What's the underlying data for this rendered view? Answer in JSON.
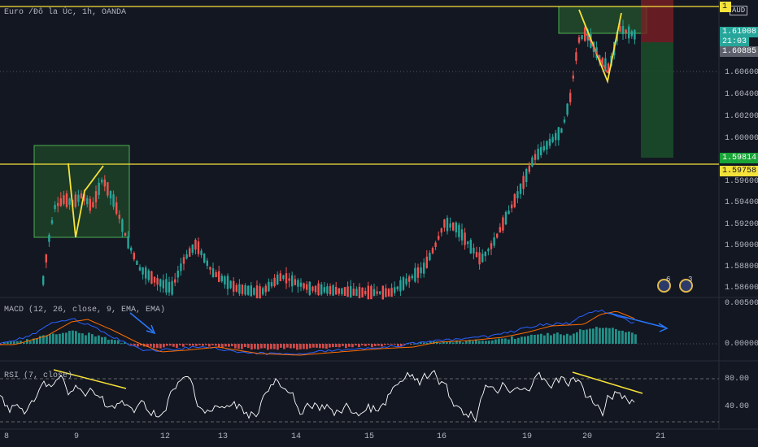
{
  "header": {
    "symbol_title": "Euro /Đô la Úc, 1h, OANDA",
    "currency": "AUD"
  },
  "price_axis": {
    "labels": [
      "1.60600",
      "1.60400",
      "1.60200",
      "1.60000",
      "1.59600",
      "1.59400",
      "1.59200",
      "1.59000",
      "1.58800",
      "1.58600"
    ],
    "tag_top": "1",
    "tag_current_price": "1.61008",
    "tag_countdown": "21:03",
    "tag_grey": "1.60885",
    "tag_green": "1.59814",
    "tag_yellow": "1.59758"
  },
  "macd_pane": {
    "title": "MACD (12, 26, close, 9, EMA, EMA)",
    "axis_labels": [
      "0.00500",
      "0.00000"
    ]
  },
  "rsi_pane": {
    "title": "RSI (7, close)",
    "axis_labels": [
      "80.00",
      "40.00"
    ]
  },
  "time_axis": {
    "labels": [
      "8",
      "9",
      "12",
      "13",
      "14",
      "15",
      "16",
      "19",
      "20",
      "21"
    ]
  },
  "badges": [
    {
      "name": "events-badge",
      "count": "6"
    },
    {
      "name": "ideas-badge",
      "count": "3"
    }
  ],
  "colors": {
    "background": "#131722",
    "up_candle": "#26a69a",
    "down_candle": "#ef5350",
    "level_line": "#f7e23a",
    "zone_fill": "#2e7d32",
    "macd_line": "#2962ff",
    "signal_line": "#ff6d00",
    "rsi_line": "#ffffff",
    "arrow": "#2979ff"
  }
}
